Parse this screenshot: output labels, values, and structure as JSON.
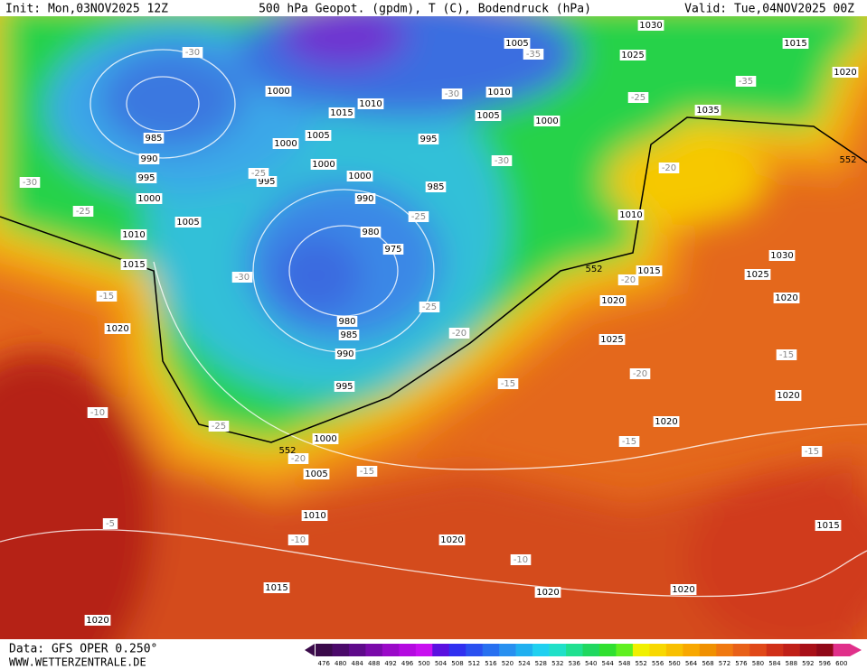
{
  "header": {
    "init": "Init: Mon,03NOV2025 12Z",
    "title": "500 hPa Geopot. (gpdm), T (C), Bodendruck (hPa)",
    "valid": "Valid: Tue,04NOV2025 00Z"
  },
  "footer": {
    "data": "Data: GFS OPER 0.250°",
    "site": "WWW.WETTERZENTRALE.DE"
  },
  "pressure_labels": [
    1005,
    1030,
    1015,
    1025,
    1020,
    1000,
    1010,
    1010,
    1015,
    1005,
    1000,
    1035,
    1005,
    985,
    995,
    1000,
    990,
    1000,
    995,
    1000,
    995,
    985,
    1000,
    990,
    1010,
    1005,
    1010,
    980,
    975,
    1030,
    1015,
    1015,
    1025,
    1020,
    1020,
    980,
    985,
    1020,
    1025,
    990,
    995,
    1020,
    1020,
    1000,
    1005,
    1010,
    1020,
    1015,
    1015,
    1020,
    1020,
    1020
  ],
  "temperature_labels": [
    -30,
    -35,
    -30,
    -25,
    -35,
    -30,
    -25,
    -25,
    -30,
    -20,
    -25,
    -30,
    -15,
    -25,
    -20,
    -20,
    -20,
    -15,
    -15,
    -10,
    -25,
    -20,
    -15,
    -15,
    -15,
    -10,
    -5,
    -10
  ],
  "geopotential_labels": [
    552,
    552,
    552
  ],
  "legend": {
    "values": [
      476,
      480,
      484,
      488,
      492,
      496,
      500,
      504,
      508,
      512,
      516,
      520,
      524,
      528,
      532,
      536,
      540,
      544,
      548,
      552,
      556,
      560,
      564,
      568,
      572,
      576,
      580,
      584,
      588,
      592,
      596,
      600
    ],
    "colors": [
      "#3a0a4a",
      "#4b0a6a",
      "#5e0a8a",
      "#7a0aaa",
      "#9a0ac8",
      "#b40ae0",
      "#c810f0",
      "#5a10e0",
      "#3030f0",
      "#2a50f0",
      "#2870f0",
      "#2890f0",
      "#20b0f0",
      "#20d0f0",
      "#20e0c8",
      "#20e090",
      "#20d860",
      "#30e030",
      "#60f020",
      "#f0f000",
      "#f8d800",
      "#f8c000",
      "#f8a800",
      "#f09000",
      "#f07810",
      "#e86018",
      "#e04818",
      "#d03018",
      "#c02018",
      "#a81018",
      "#900818",
      "#e0308a"
    ]
  }
}
